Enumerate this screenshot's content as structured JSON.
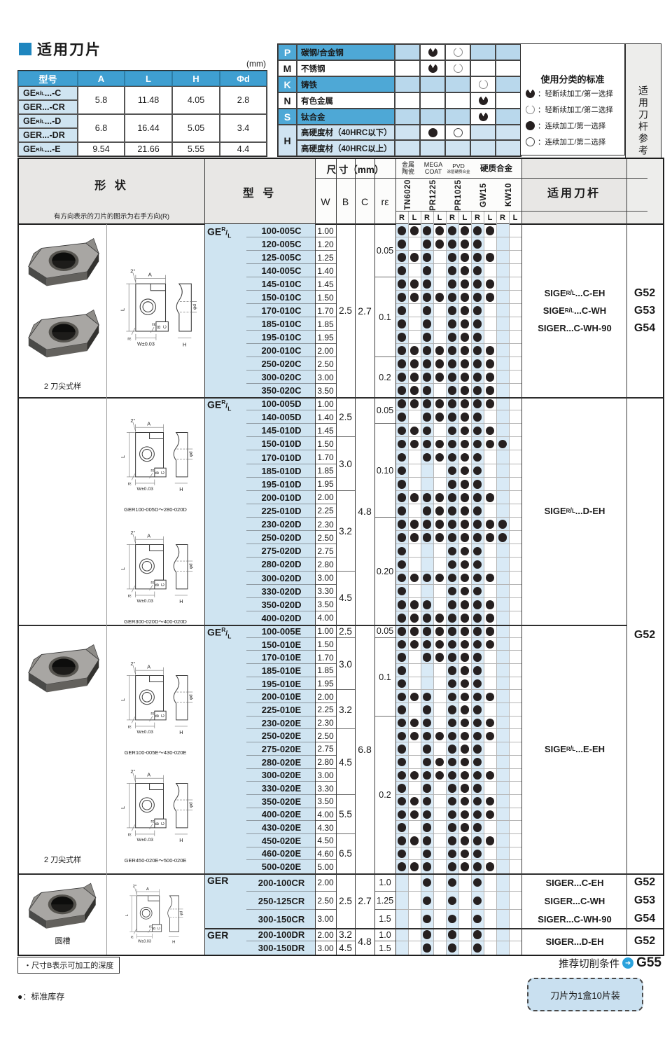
{
  "title": "适用刀片",
  "unit_label": "(mm)",
  "dim_table": {
    "headers": [
      "型号",
      "A",
      "L",
      "H",
      "Φd"
    ],
    "models": [
      "GER/L...-C",
      "GER...-CR",
      "GER/L...-D",
      "GER...-DR",
      "GER/L...-E"
    ],
    "value_groups": [
      {
        "span": 2,
        "A": "5.8",
        "L": "11.48",
        "H": "4.05",
        "d": "2.8"
      },
      {
        "span": 2,
        "A": "6.8",
        "L": "16.44",
        "H": "5.05",
        "d": "3.4"
      },
      {
        "span": 1,
        "A": "9.54",
        "L": "21.66",
        "H": "5.55",
        "d": "4.4"
      }
    ]
  },
  "material_table": {
    "columns": [
      "TN6020",
      "PR1225",
      "PR1025",
      "GW15",
      "KW10"
    ],
    "rows": [
      {
        "letter": "P",
        "name": "碳钢/合金钢",
        "tone": "blue",
        "dots": {
          "PR1225": "pac_filled",
          "PR1025": "pac_open"
        }
      },
      {
        "letter": "M",
        "name": "不锈钢",
        "tone": "white",
        "dots": {
          "PR1225": "pac_filled",
          "PR1025": "pac_open"
        }
      },
      {
        "letter": "K",
        "name": "铸铁",
        "tone": "blue",
        "dots": {
          "GW15": "pac_open"
        }
      },
      {
        "letter": "N",
        "name": "有色金属",
        "tone": "white",
        "dots": {
          "GW15": "pac_filled"
        }
      },
      {
        "letter": "S",
        "name": "钛合金",
        "tone": "blue",
        "dots": {
          "GW15": "pac_filled"
        }
      },
      {
        "letter": "H",
        "name": "高硬度材（40HRC以下）",
        "tone": "light",
        "dots": {
          "PR1225": "dot_filled",
          "PR1025": "dot_open"
        }
      },
      {
        "letter": "H",
        "name": "高硬度材（40HRC以上）",
        "tone": "light",
        "dots": {}
      }
    ]
  },
  "legend": {
    "title": "使用分类的标准",
    "items": [
      {
        "symbol": "pac_filled",
        "text": "：轻断续加工/第一选择"
      },
      {
        "symbol": "pac_open",
        "text": "：轻断续加工/第二选择"
      },
      {
        "symbol": "dot_filled",
        "text": "：连续加工/第一选择"
      },
      {
        "symbol": "dot_open",
        "text": "：连续加工/第二选择"
      }
    ]
  },
  "side_strip": "适用刀杆参考页数",
  "main_table": {
    "headers": {
      "shape": "形 状",
      "shape_note": "有方向表示的刀片的图示为右手方向(R)",
      "model": "型 号",
      "size": "尺 寸（mm）",
      "size_cols": [
        "W",
        "B",
        "C",
        "rε"
      ],
      "groups": [
        {
          "l1": "金属",
          "l2": "陶瓷",
          "cols": [
            "TN6020"
          ]
        },
        {
          "l1": "MEGA",
          "l2": "COAT",
          "cols": [
            "PR1225"
          ]
        },
        {
          "l1": "PVD",
          "l2": "涂层硬质合金",
          "cols": [
            "PR1025"
          ]
        },
        {
          "l1": "硬质合金",
          "l2": "",
          "cols": [
            "GW15",
            "KW10"
          ]
        }
      ],
      "rl": [
        "R",
        "L"
      ],
      "holder": "适用刀杆"
    },
    "merged_page": {
      "label": "G52",
      "blocks": [
        "D",
        "E"
      ]
    },
    "blocks": [
      {
        "id": "C",
        "prefix": "GER/L",
        "c_value": "2.7",
        "b_groups": [
          {
            "v": "2.5",
            "n": 13
          }
        ],
        "re_groups": [
          {
            "v": "0.05",
            "n": 4
          },
          {
            "v": "0.1",
            "n": 6
          },
          {
            "v": "0.2",
            "n": 3
          }
        ],
        "rows": [
          [
            "100-005C",
            "1.00",
            "1111111100"
          ],
          [
            "120-005C",
            "1.20",
            "1011111000"
          ],
          [
            "125-005C",
            "1.25",
            "1110111100"
          ],
          [
            "140-005C",
            "1.40",
            "1010111000"
          ],
          [
            "145-010C",
            "1.45",
            "1110111100"
          ],
          [
            "150-010C",
            "1.50",
            "1111111100"
          ],
          [
            "170-010C",
            "1.70",
            "1010111000"
          ],
          [
            "185-010C",
            "1.85",
            "1010111000"
          ],
          [
            "195-010C",
            "1.95",
            "1010111000"
          ],
          [
            "200-010C",
            "2.00",
            "1111111100"
          ],
          [
            "250-020C",
            "2.50",
            "1111111100"
          ],
          [
            "300-020C",
            "3.00",
            "1111111100"
          ],
          [
            "350-020C",
            "3.50",
            "1110111100"
          ]
        ],
        "holders": [
          {
            "name": "SIGER/L...C-EH",
            "page": "G52"
          },
          {
            "name": "SIGER/L...C-WH",
            "page": "G53"
          },
          {
            "name": "SIGER...C-WH-90",
            "page": "G54"
          }
        ],
        "shape": {
          "photos": 2,
          "caption": "2 刀尖式样",
          "drawing_captions": [
            ""
          ]
        }
      },
      {
        "id": "D",
        "prefix": "GER/L",
        "c_value": "4.8",
        "b_groups": [
          {
            "v": "2.5",
            "n": 3
          },
          {
            "v": "3.0",
            "n": 4
          },
          {
            "v": "3.2",
            "n": 6
          },
          {
            "v": "4.5",
            "n": 4
          }
        ],
        "re_groups": [
          {
            "v": "0.05",
            "n": 2
          },
          {
            "v": "0.10",
            "n": 7
          },
          {
            "v": "0.20",
            "n": 8
          }
        ],
        "rows": [
          [
            "100-005D",
            "1.00",
            "1111111100"
          ],
          [
            "140-005D",
            "1.40",
            "1011111000"
          ],
          [
            "145-010D",
            "1.45",
            "1110111100"
          ],
          [
            "150-010D",
            "1.50",
            "1111111110"
          ],
          [
            "170-010D",
            "1.70",
            "1011111000"
          ],
          [
            "185-010D",
            "1.85",
            "1000111000"
          ],
          [
            "195-010D",
            "1.95",
            "1000111000"
          ],
          [
            "200-010D",
            "2.00",
            "1111111100"
          ],
          [
            "225-010D",
            "2.25",
            "1011111000"
          ],
          [
            "230-020D",
            "2.30",
            "1111111110"
          ],
          [
            "250-020D",
            "2.50",
            "1111111110"
          ],
          [
            "275-020D",
            "2.75",
            "1000111000"
          ],
          [
            "280-020D",
            "2.80",
            "1000111000"
          ],
          [
            "300-020D",
            "3.00",
            "1111111100"
          ],
          [
            "330-020D",
            "3.30",
            "1000111000"
          ],
          [
            "350-020D",
            "3.50",
            "1110111100"
          ],
          [
            "400-020D",
            "4.00",
            "1111111100"
          ]
        ],
        "holders": [
          {
            "name": "SIGER/L...D-EH",
            "page": ""
          }
        ],
        "shape": {
          "photos": 0,
          "caption": "",
          "drawing_captions": [
            "GER100-005D～280-020D",
            "GER300-020D～400-020D"
          ]
        }
      },
      {
        "id": "E",
        "prefix": "GER/L",
        "c_value": "6.8",
        "b_groups": [
          {
            "v": "2.5",
            "n": 1
          },
          {
            "v": "3.0",
            "n": 4
          },
          {
            "v": "3.2",
            "n": 3
          },
          {
            "v": "4.5",
            "n": 5
          },
          {
            "v": "5.5",
            "n": 3
          },
          {
            "v": "6.5",
            "n": 3
          }
        ],
        "re_groups": [
          {
            "v": "0.05",
            "n": 1
          },
          {
            "v": "0.1",
            "n": 6
          },
          {
            "v": "0.2",
            "n": 12
          }
        ],
        "rows": [
          [
            "100-005E",
            "1.00",
            "1111111100"
          ],
          [
            "150-010E",
            "1.50",
            "1111111100"
          ],
          [
            "170-010E",
            "1.70",
            "1011111000"
          ],
          [
            "185-010E",
            "1.85",
            "1000111000"
          ],
          [
            "195-010E",
            "1.95",
            "1000111000"
          ],
          [
            "200-010E",
            "2.00",
            "1110111100"
          ],
          [
            "225-010E",
            "2.25",
            "1010111000"
          ],
          [
            "230-020E",
            "2.30",
            "1110111100"
          ],
          [
            "250-020E",
            "2.50",
            "1111111100"
          ],
          [
            "275-020E",
            "2.75",
            "1010111000"
          ],
          [
            "280-020E",
            "2.80",
            "1011111000"
          ],
          [
            "300-020E",
            "3.00",
            "1111111100"
          ],
          [
            "330-020E",
            "3.30",
            "1010111000"
          ],
          [
            "350-020E",
            "3.50",
            "1110111100"
          ],
          [
            "400-020E",
            "4.00",
            "1110111100"
          ],
          [
            "430-020E",
            "4.30",
            "1010111000"
          ],
          [
            "450-020E",
            "4.50",
            "1110111100"
          ],
          [
            "460-020E",
            "4.60",
            "1010111000"
          ],
          [
            "500-020E",
            "5.00",
            "1110111100"
          ]
        ],
        "holders": [
          {
            "name": "SIGER/L...E-EH",
            "page": ""
          }
        ],
        "shape": {
          "photos": 1,
          "caption": "2 刀尖式样",
          "drawing_captions": [
            "GER100-005E～430-020E",
            "GER450-020E～500-020E"
          ]
        }
      },
      {
        "id": "CR",
        "prefix": "GER",
        "c_value": "2.7",
        "b_groups": [
          {
            "v": "2.5",
            "n": 3
          }
        ],
        "re_groups": [
          {
            "v": "1.0",
            "n": 1
          },
          {
            "v": "1.25",
            "n": 1
          },
          {
            "v": "1.5",
            "n": 1
          }
        ],
        "rows": [
          [
            "200-100CR",
            "2.00",
            "0010101000"
          ],
          [
            "250-125CR",
            "2.50",
            "0010101000"
          ],
          [
            "300-150CR",
            "3.00",
            "0010101000"
          ]
        ],
        "holders": [
          {
            "name": "SIGER...C-EH",
            "page": "G52"
          },
          {
            "name": "SIGER...C-WH",
            "page": "G53"
          },
          {
            "name": "SIGER...C-WH-90",
            "page": "G54"
          }
        ],
        "shape": null
      },
      {
        "id": "DR",
        "prefix": "GER",
        "c_value": "4.8",
        "b_groups": [
          {
            "v": "3.2",
            "n": 1
          },
          {
            "v": "4.5",
            "n": 1
          }
        ],
        "re_groups": [
          {
            "v": "1.0",
            "n": 1
          },
          {
            "v": "1.5",
            "n": 1
          }
        ],
        "rows": [
          [
            "200-100DR",
            "2.00",
            "0010101000"
          ],
          [
            "300-150DR",
            "3.00",
            "0010101000"
          ]
        ],
        "holders": [
          {
            "name": "SIGER...D-EH",
            "page": "G52"
          }
        ],
        "shape": null
      }
    ],
    "crdr_shape": {
      "photos": 1,
      "caption": "圆槽"
    }
  },
  "footer": {
    "note_box": "・尺寸B表示可加工的深度",
    "stock_note": "●：标准库存",
    "cutting_note": "推荐切削条件",
    "cutting_page": "G55",
    "pack_note": "刀片为1盒10片装"
  },
  "colors": {
    "header_blue": "#3f9fd1",
    "model_cell_blue": "#cfe4f1",
    "dot_column_blue": "#d9eaf6",
    "material_blue": "#4ea8d6",
    "material_light": "#cfe3f1",
    "dot": "#262020"
  }
}
